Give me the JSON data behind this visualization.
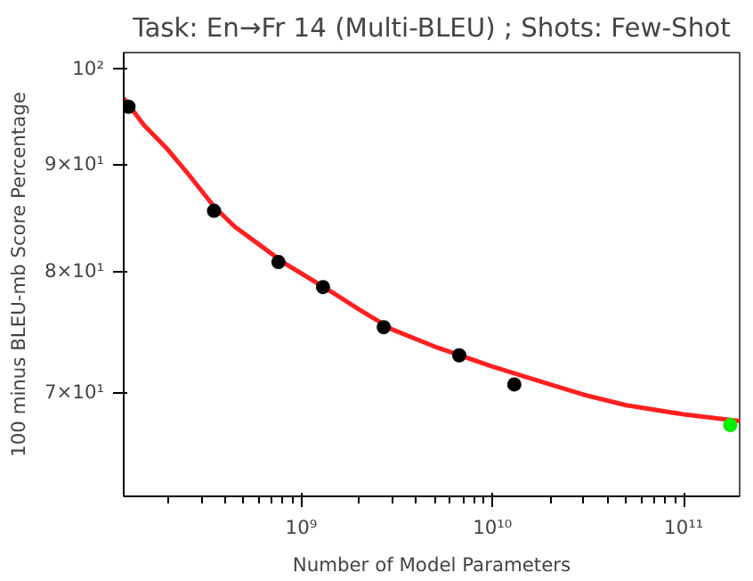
{
  "chart_data": {
    "type": "scatter",
    "title": "Task: En→Fr 14 (Multi-BLEU) ; Shots: Few-Shot",
    "xlabel": "Number of Model Parameters",
    "ylabel": "100 minus BLEU-mb Score Percentage",
    "log": "xy",
    "grid": false,
    "xlim": [
      118000000.0,
      196000000000.0
    ],
    "ylim": [
      62.4,
      101.8
    ],
    "xticks": [
      {
        "value": 1000000000.0,
        "label": "10⁹"
      },
      {
        "value": 10000000000.0,
        "label": "10¹⁰"
      },
      {
        "value": 100000000000.0,
        "label": "10¹¹"
      }
    ],
    "yticks": [
      {
        "value": 70,
        "label": "7×10¹"
      },
      {
        "value": 80,
        "label": "8×10¹"
      },
      {
        "value": 90,
        "label": "9×10¹"
      },
      {
        "value": 100,
        "label": "10²"
      }
    ],
    "series": [
      {
        "type": "line",
        "color": "#ff2020",
        "x": [
          118000000.0,
          150000000.0,
          200000000.0,
          250000000.0,
          350000000.0,
          450000000.0,
          600000000.0,
          800000000.0,
          1000000000.0,
          1500000000.0,
          2000000000.0,
          3000000000.0,
          5000000000.0,
          10000000000.0,
          20000000000.0,
          30000000000.0,
          50000000000.0,
          100000000000.0,
          196000000000.0
        ],
        "values": [
          96.8,
          94.0,
          91.5,
          89.3,
          85.9,
          84.0,
          82.4,
          80.8,
          79.8,
          78.0,
          76.7,
          75.0,
          73.6,
          72.0,
          70.6,
          69.8,
          69.0,
          68.3,
          67.8
        ]
      },
      {
        "marker": "circle",
        "color": "#000000",
        "x": [
          125000000.0,
          350000000.0,
          760000000.0,
          1300000000.0,
          2700000000.0,
          6700000000.0,
          13000000000.0
        ],
        "values": [
          95.9,
          85.5,
          80.8,
          78.6,
          75.2,
          72.9,
          70.6
        ]
      },
      {
        "marker": "circle",
        "color": "#00ee00",
        "x": [
          175000000000.0
        ],
        "values": [
          67.5
        ]
      }
    ]
  }
}
